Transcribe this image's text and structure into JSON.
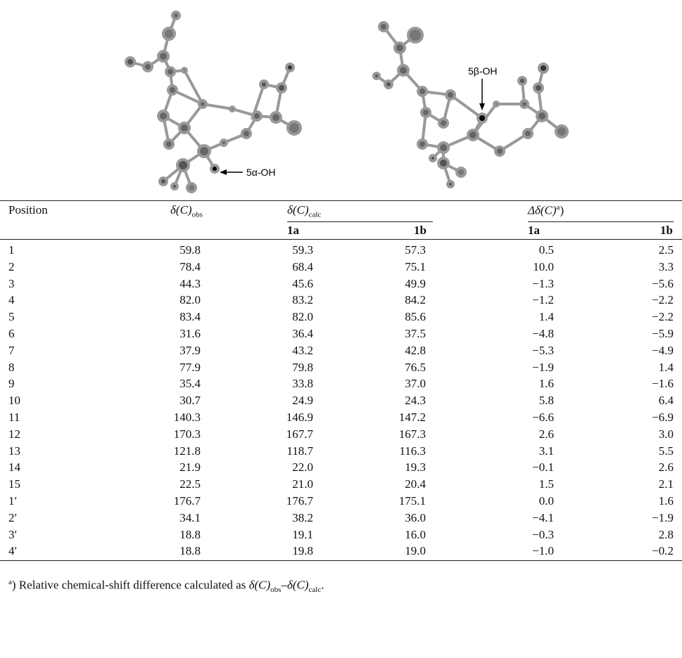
{
  "figure": {
    "label_left": "5α-OH",
    "label_right": "5β-OH"
  },
  "table": {
    "header": {
      "position": "Position",
      "observed": {
        "symbol": "δ(C)",
        "sub": "obs"
      },
      "calculated": {
        "symbol": "δ(C)",
        "sub": "calc",
        "subcolumns": [
          "1a",
          "1b"
        ]
      },
      "difference": {
        "symbol": "Δδ(C)",
        "sup": "a",
        "close": ")",
        "subcolumns": [
          "1a",
          "1b"
        ]
      }
    },
    "rows": [
      [
        "1",
        "59.8",
        "59.3",
        "57.3",
        "0.5",
        "2.5"
      ],
      [
        "2",
        "78.4",
        "68.4",
        "75.1",
        "10.0",
        "3.3"
      ],
      [
        "3",
        "44.3",
        "45.6",
        "49.9",
        "−1.3",
        "−5.6"
      ],
      [
        "4",
        "82.0",
        "83.2",
        "84.2",
        "−1.2",
        "−2.2"
      ],
      [
        "5",
        "83.4",
        "82.0",
        "85.6",
        "1.4",
        "−2.2"
      ],
      [
        "6",
        "31.6",
        "36.4",
        "37.5",
        "−4.8",
        "−5.9"
      ],
      [
        "7",
        "37.9",
        "43.2",
        "42.8",
        "−5.3",
        "−4.9"
      ],
      [
        "8",
        "77.9",
        "79.8",
        "76.5",
        "−1.9",
        "1.4"
      ],
      [
        "9",
        "35.4",
        "33.8",
        "37.0",
        "1.6",
        "−1.6"
      ],
      [
        "10",
        "30.7",
        "24.9",
        "24.3",
        "5.8",
        "6.4"
      ],
      [
        "11",
        "140.3",
        "146.9",
        "147.2",
        "−6.6",
        "−6.9"
      ],
      [
        "12",
        "170.3",
        "167.7",
        "167.3",
        "2.6",
        "3.0"
      ],
      [
        "13",
        "121.8",
        "118.7",
        "116.3",
        "3.1",
        "5.5"
      ],
      [
        "14",
        "21.9",
        "22.0",
        "19.3",
        "−0.1",
        "2.6"
      ],
      [
        "15",
        "22.5",
        "21.0",
        "20.4",
        "1.5",
        "2.1"
      ],
      [
        "1′",
        "176.7",
        "176.7",
        "175.1",
        "0.0",
        "1.6"
      ],
      [
        "2′",
        "34.1",
        "38.2",
        "36.0",
        "−4.1",
        "−1.9"
      ],
      [
        "3′",
        "18.8",
        "19.1",
        "16.0",
        "−0.3",
        "2.8"
      ],
      [
        "4′",
        "18.8",
        "19.8",
        "19.0",
        "−1.0",
        "−0.2"
      ]
    ]
  },
  "footnote": {
    "marker": "a",
    "close": ")",
    "text": " Relative chemical-shift difference calculated as ",
    "term1": {
      "symbol": "δ(C)",
      "sub": "obs"
    },
    "operator": "–",
    "term2": {
      "symbol": "δ(C)",
      "sub": "calc"
    },
    "end": "."
  }
}
